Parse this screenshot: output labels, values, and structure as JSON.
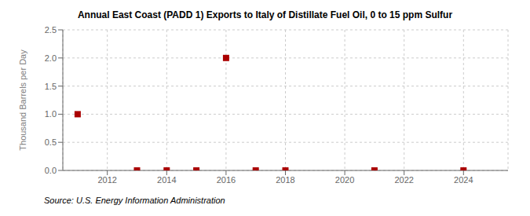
{
  "chart_data": {
    "type": "scatter",
    "title": "Annual East Coast (PADD 1) Exports to Italy of Distillate Fuel Oil, 0 to 15 ppm Sulfur",
    "ylabel": "Thousand Barrels per Day",
    "annotation": "Source: U.S. Energy Information Administration",
    "x": [
      2011,
      2013,
      2014,
      2015,
      2016,
      2017,
      2018,
      2021,
      2024
    ],
    "values": [
      1.0,
      0.0,
      0.0,
      0.0,
      2.0,
      0.0,
      0.0,
      0.0,
      0.0
    ],
    "xlim": [
      2010.5,
      2025.5
    ],
    "xticks": [
      2012,
      2014,
      2016,
      2018,
      2020,
      2022,
      2024
    ],
    "ylim": [
      0.0,
      2.5
    ],
    "yticks": [
      {
        "value": 0,
        "label": "0.0"
      },
      0.5,
      {
        "value": 1,
        "label": "1.0"
      },
      1.5,
      {
        "value": 2,
        "label": "2.0"
      },
      2.5
    ],
    "color": "#aa0000",
    "marker": "square",
    "grid": true
  }
}
